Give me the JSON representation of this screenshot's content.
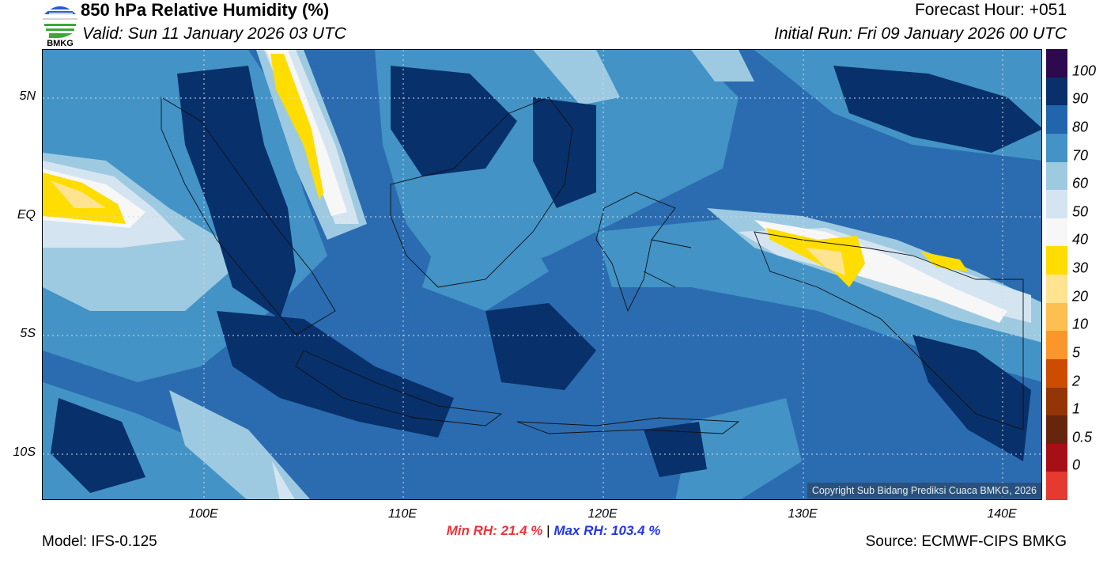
{
  "header": {
    "title": "850 hPa Relative Humidity (%)",
    "valid": "Valid: Sun 11 January 2026 03 UTC",
    "forecast_hour": "Forecast Hour: +051",
    "initial_run": "Initial Run: Fri 09 January 2026 00 UTC",
    "logo_text": "BMKG"
  },
  "map": {
    "lat_labels": [
      "5N",
      "EQ",
      "5S",
      "10S"
    ],
    "lon_labels": [
      "100E",
      "110E",
      "120E",
      "130E",
      "140E"
    ],
    "copyright": "Copyright Sub Bidang Prediksi Cuaca BMKG, 2026"
  },
  "colorbar": {
    "labels": [
      "100",
      "90",
      "80",
      "70",
      "60",
      "50",
      "40",
      "30",
      "20",
      "10",
      "5",
      "2",
      "1",
      "0.5",
      "0"
    ],
    "colors": [
      "#2d0a4e",
      "#08306b",
      "#2166ac",
      "#4393c6",
      "#9ecae1",
      "#d4e5f1",
      "#f7f7f7",
      "#ffdd00",
      "#fee391",
      "#fdbf4f",
      "#fb962a",
      "#cc4c02",
      "#933507",
      "#66250d",
      "#a50f15",
      "#e43a2f"
    ]
  },
  "footer": {
    "min_rh": "Min RH:  21.4 %",
    "separator": "|",
    "max_rh": "Max RH: 103.4 %",
    "model": "Model: IFS-0.125",
    "source": "Source: ECMWF-CIPS BMKG"
  }
}
